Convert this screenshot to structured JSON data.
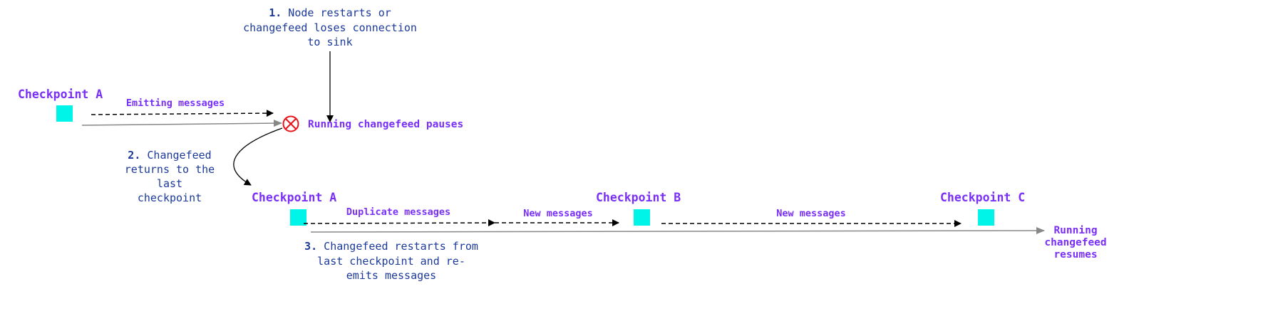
{
  "colors": {
    "label": "#7a2ff7",
    "note": "#1c3a9a",
    "checkpoint": "#00f5e8",
    "error": "#e8141c",
    "timeline": "#888888"
  },
  "step1": {
    "num": "1.",
    "lines": [
      "Node restarts or",
      "changefeed loses connection",
      "to sink"
    ]
  },
  "step2": {
    "num": "2.",
    "lines": [
      "Changefeed",
      "returns to the",
      "last",
      "checkpoint"
    ]
  },
  "step3": {
    "num": "3.",
    "lines": [
      "Changefeed restarts from",
      "last checkpoint and re-",
      "emits messages"
    ]
  },
  "top": {
    "checkpoint": "Checkpoint A",
    "emitting": "Emitting messages",
    "pause": "Running changefeed pauses",
    "pause_icon": "circle-x-icon"
  },
  "bottom": {
    "checkpoints": [
      "Checkpoint A",
      "Checkpoint B",
      "Checkpoint C"
    ],
    "duplicate": "Duplicate messages",
    "new1": "New messages",
    "new2": "New messages",
    "resume": [
      "Running",
      "changefeed",
      "resumes"
    ]
  }
}
